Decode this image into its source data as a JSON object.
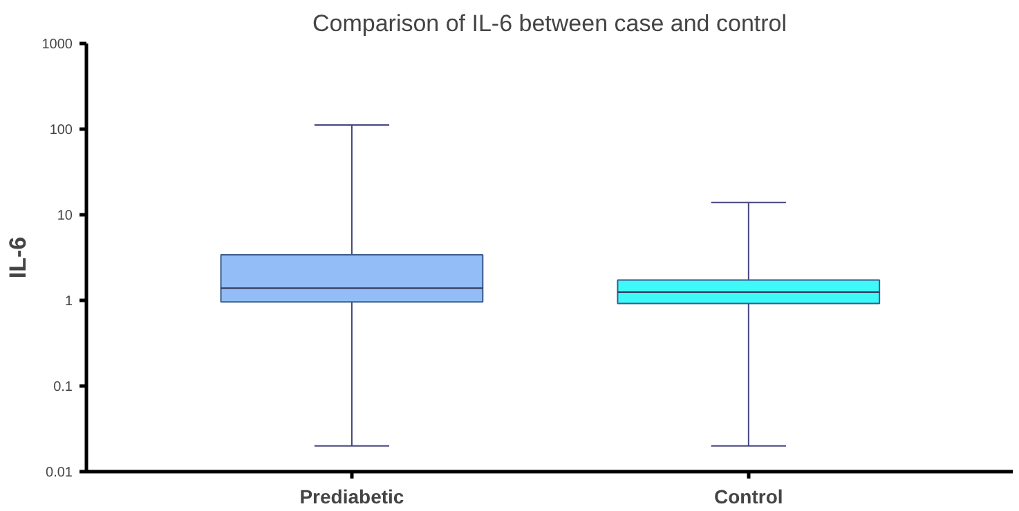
{
  "chart_data": {
    "type": "box",
    "title": "Comparison of IL-6 between case and control",
    "ylabel": "IL-6",
    "categories": [
      "Prediabetic",
      "Control"
    ],
    "series": [
      {
        "color": "#92bdf7",
        "boxes": [
          {
            "low": 0.02,
            "q1": 0.96,
            "median": 1.39,
            "q3": 3.4,
            "high": 112
          },
          null
        ]
      },
      {
        "color": "#3ff8f8",
        "boxes": [
          null,
          {
            "low": 0.02,
            "q1": 0.92,
            "median": 1.25,
            "q3": 1.73,
            "high": 13.9
          }
        ]
      }
    ],
    "log": true,
    "ylim": [
      0.01,
      1000
    ],
    "yticks": [
      0.01,
      0.1,
      1,
      10,
      100,
      1000
    ],
    "grid": false
  }
}
